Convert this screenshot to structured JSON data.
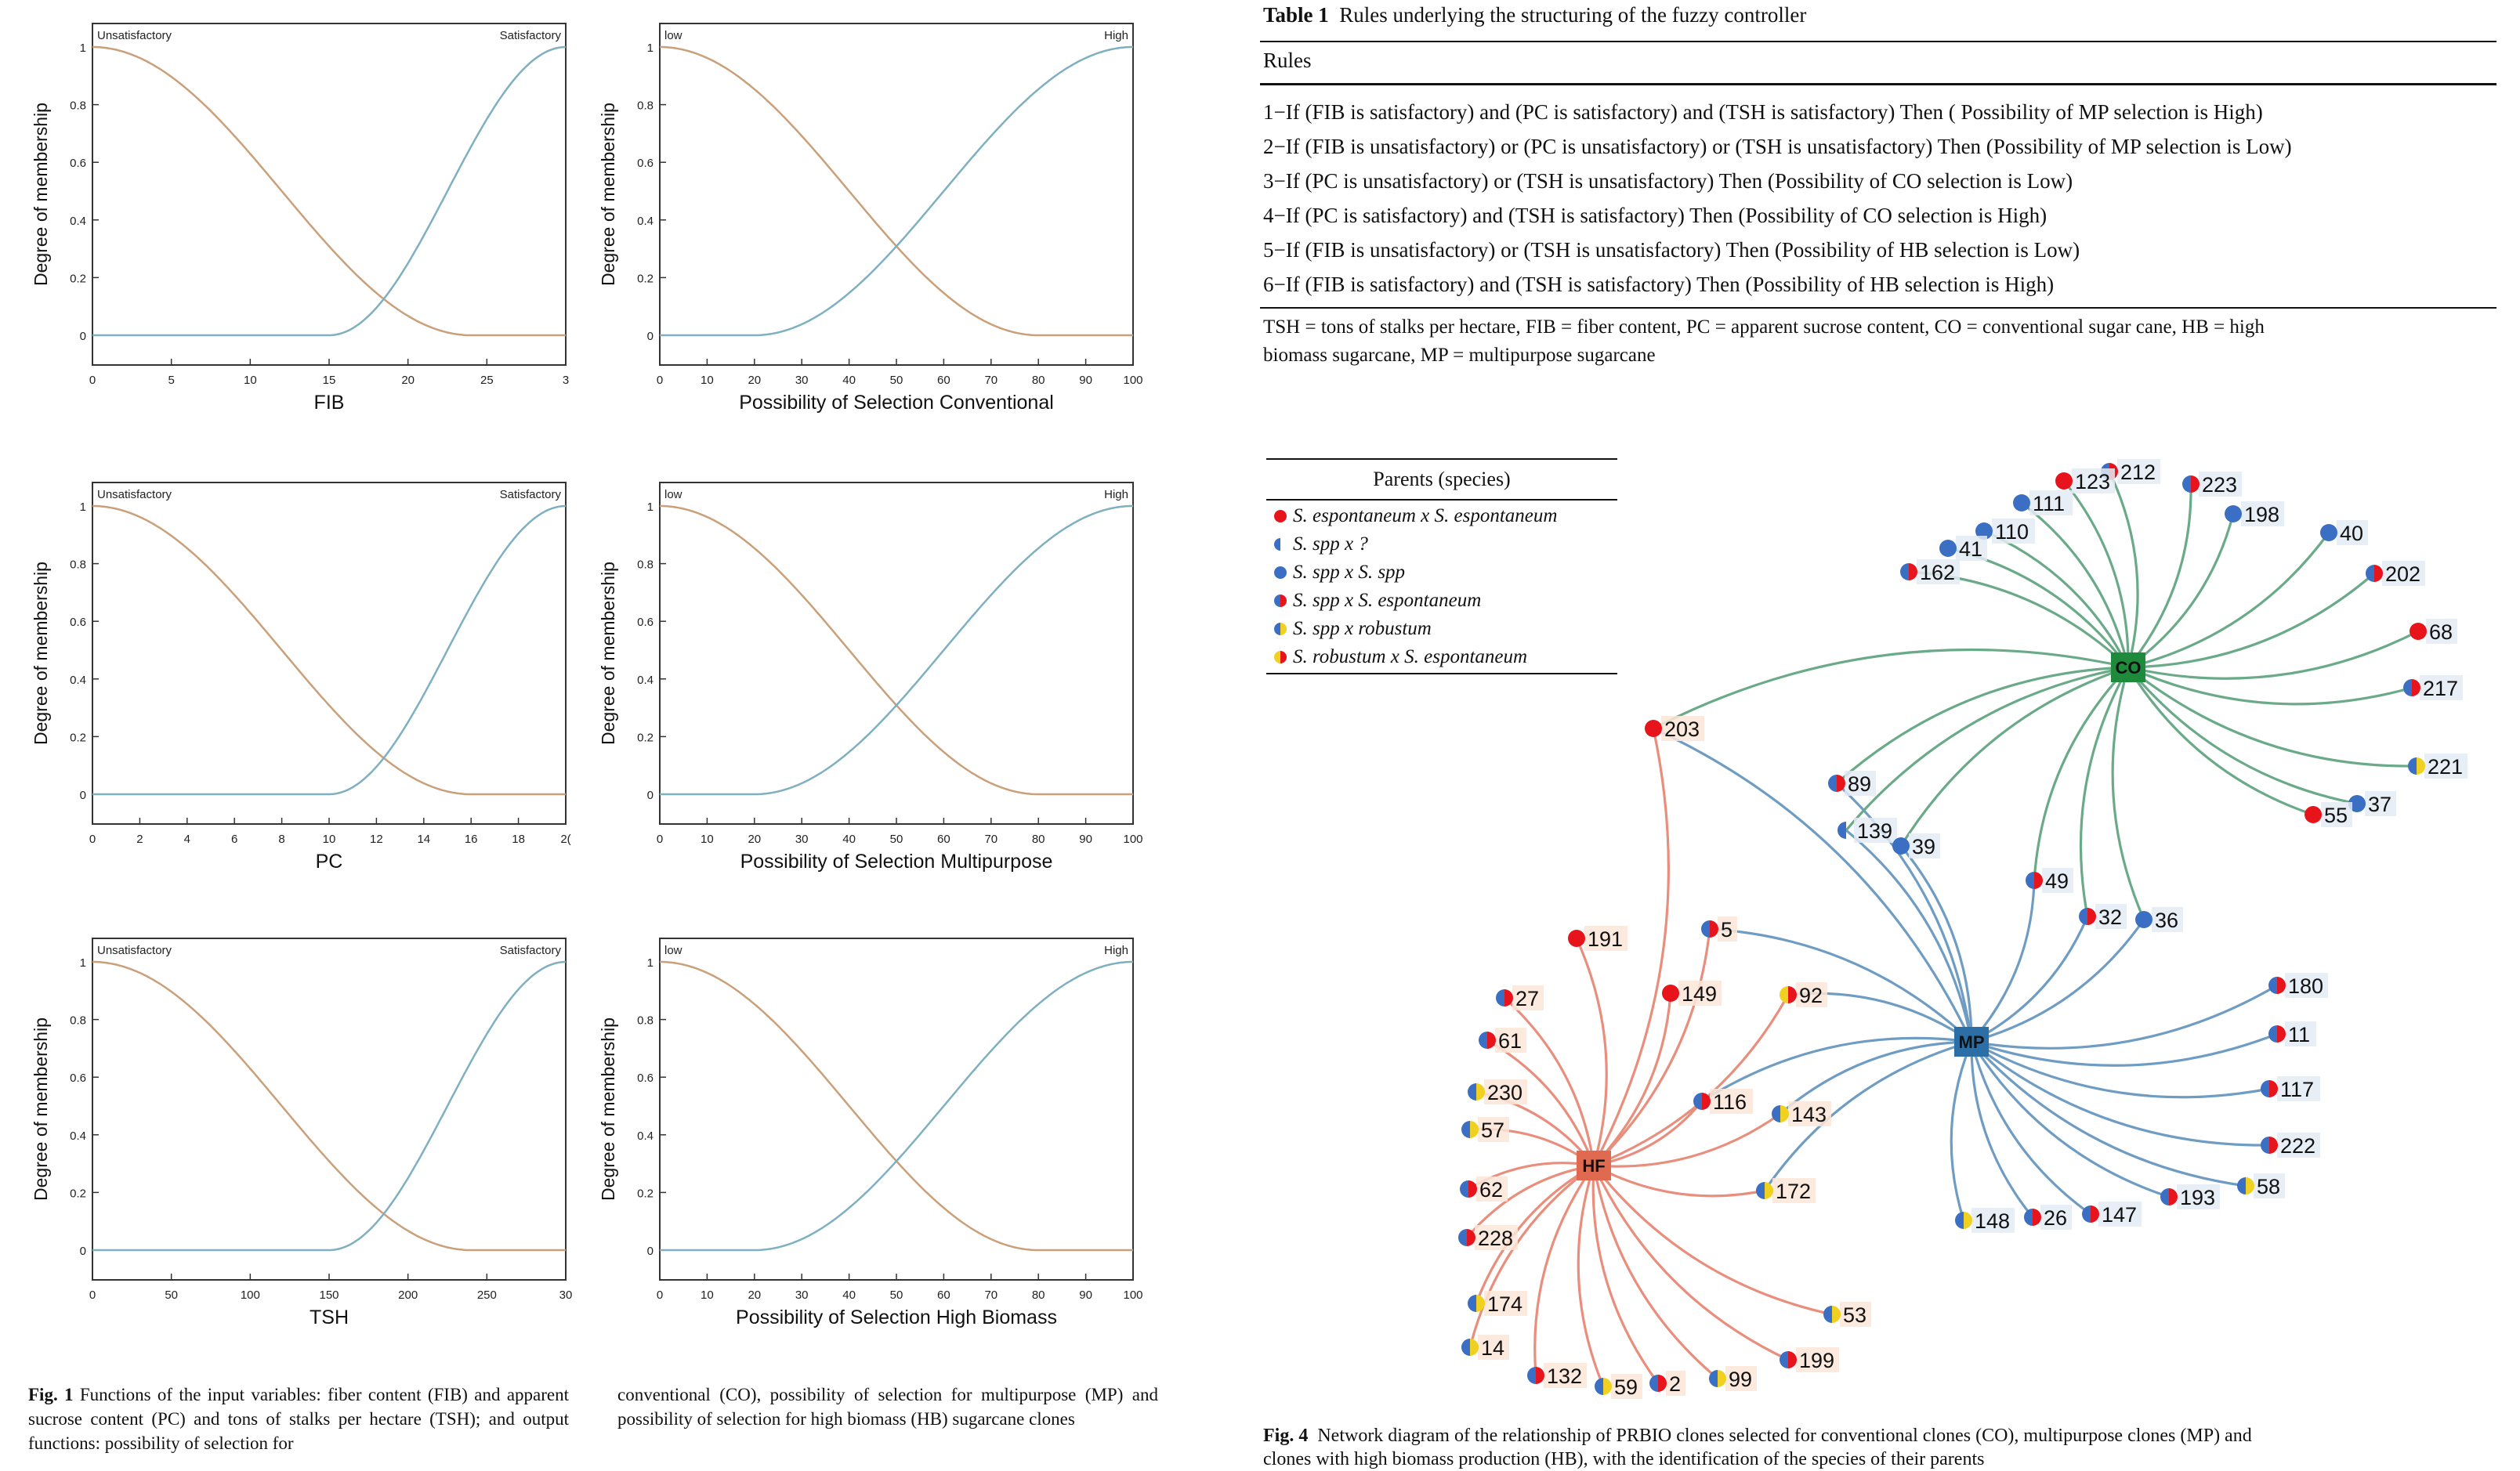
{
  "fig1": {
    "panels": [
      {
        "id": "fib",
        "ylabel": "Degree of membership",
        "xlabel": "FIB",
        "left_label": "Unsatisfactory",
        "right_label": "Satisfactory",
        "yticks": [
          "0",
          "0.2",
          "0.4",
          "0.6",
          "0.8",
          "1"
        ],
        "xticks": [
          "0",
          "5",
          "10",
          "15",
          "20",
          "25",
          "3"
        ]
      },
      {
        "id": "conv",
        "ylabel": "Degree of membership",
        "xlabel": "Possibility  of Selection  Conventional",
        "left_label": "low",
        "right_label": "High",
        "yticks": [
          "0",
          "0.2",
          "0.4",
          "0.6",
          "0.8",
          "1"
        ],
        "xticks": [
          "0",
          "10",
          "20",
          "30",
          "40",
          "50",
          "60",
          "70",
          "80",
          "90",
          "100"
        ]
      },
      {
        "id": "pc",
        "ylabel": "Degree of membership",
        "xlabel": "PC",
        "left_label": "Unsatisfactory",
        "right_label": "Satisfactory",
        "yticks": [
          "0",
          "0.2",
          "0.4",
          "0.6",
          "0.8",
          "1"
        ],
        "xticks": [
          "0",
          "2",
          "4",
          "6",
          "8",
          "10",
          "12",
          "14",
          "16",
          "18",
          "2("
        ]
      },
      {
        "id": "multi",
        "ylabel": "Degree of membership",
        "xlabel": "Possibility  of Selection  Multipurpose",
        "left_label": "low",
        "right_label": "High",
        "yticks": [
          "0",
          "0.2",
          "0.4",
          "0.6",
          "0.8",
          "1"
        ],
        "xticks": [
          "0",
          "10",
          "20",
          "30",
          "40",
          "50",
          "60",
          "70",
          "80",
          "90",
          "100"
        ]
      },
      {
        "id": "tsh",
        "ylabel": "Degree of membership",
        "xlabel": "TSH",
        "left_label": "Unsatisfactory",
        "right_label": "Satisfactory",
        "yticks": [
          "0",
          "0.2",
          "0.4",
          "0.6",
          "0.8",
          "1"
        ],
        "xticks": [
          "0",
          "50",
          "100",
          "150",
          "200",
          "250",
          "30"
        ]
      },
      {
        "id": "hb",
        "ylabel": "Degree of membership",
        "xlabel": "Possibility  of Selection  High Biomass",
        "left_label": "low",
        "right_label": "High",
        "yticks": [
          "0",
          "0.2",
          "0.4",
          "0.6",
          "0.8",
          "1"
        ],
        "xticks": [
          "0",
          "10",
          "20",
          "30",
          "40",
          "50",
          "60",
          "70",
          "80",
          "90",
          "100"
        ]
      }
    ],
    "caption_bold": "Fig. 1",
    "caption_col1": "Functions of the input variables: fiber content (FIB) and apparent sucrose content (PC) and tons of stalks per hectare (TSH); and output functions: possibility of selection for",
    "caption_col2": "conventional (CO), possibility of selection for multipurpose (MP) and possibility of selection for high biomass (HB) sugarcane clones",
    "colors": {
      "decreasing": "#c9a07a",
      "increasing": "#7eb0c0"
    }
  },
  "table1": {
    "title_bold": "Table 1",
    "title": "Rules underlying the structuring of the fuzzy controller",
    "header": "Rules",
    "rows": [
      "1−If (FIB is satisfactory) and (PC is satisfactory) and (TSH is satisfactory) Then ( Possibility of MP selection is High)",
      "2−If (FIB is unsatisfactory) or (PC is unsatisfactory) or (TSH is unsatisfactory) Then (Possibility of MP selection is Low)",
      "3−If (PC is unsatisfactory) or (TSH is unsatisfactory) Then (Possibility of CO selection is Low)",
      "4−If (PC is satisfactory) and (TSH is satisfactory) Then (Possibility of CO selection is High)",
      "5−If (FIB is unsatisfactory) or (TSH is unsatisfactory) Then (Possibility of HB selection is Low)",
      "6−If (FIB is satisfactory) and (TSH is satisfactory) Then (Possibility of HB selection is High)"
    ],
    "note_line1": "TSH = tons of stalks per hectare, FIB = fiber content, PC = apparent sucrose content, CO = conventional sugar cane, HB = high",
    "note_line2": "biomass sugarcane, MP = multipurpose sugarcane"
  },
  "network": {
    "legend_title": "Parents (species)",
    "legend": [
      {
        "label": "S. espontaneum x S. espontaneum",
        "type": "red"
      },
      {
        "label": "S. spp x ?",
        "type": "half-blue"
      },
      {
        "label": "S. spp x S. spp",
        "type": "blue"
      },
      {
        "label": "S. spp x S. espontaneum",
        "type": "blue-red"
      },
      {
        "label": "S. spp x robustum",
        "type": "blue-yellow"
      },
      {
        "label": "S. robustum x S. espontaneum",
        "type": "yellow-red"
      }
    ],
    "hubs": [
      {
        "id": "CO",
        "label": "CO",
        "color": "#1e8a3c"
      },
      {
        "id": "MP",
        "label": "MP",
        "color": "#2c6fa6"
      },
      {
        "id": "HF",
        "label": "HF",
        "color": "#e06a50"
      }
    ],
    "edge_colors": {
      "CO": "#6aaa88",
      "MP": "#6f9cc2",
      "HF": "#e98e7c"
    },
    "node_colors": {
      "red": "#e8141c",
      "blue": "#3a6fc4",
      "yellow": "#f0d020"
    },
    "nodes": [
      {
        "label": "212",
        "type": "blue-red",
        "hubs": [
          "CO"
        ]
      },
      {
        "label": "123",
        "type": "red",
        "hubs": [
          "CO"
        ]
      },
      {
        "label": "223",
        "type": "blue-red",
        "hubs": [
          "CO"
        ]
      },
      {
        "label": "111",
        "type": "blue",
        "hubs": [
          "CO"
        ]
      },
      {
        "label": "198",
        "type": "blue",
        "hubs": [
          "CO"
        ]
      },
      {
        "label": "110",
        "type": "blue",
        "hubs": [
          "CO"
        ]
      },
      {
        "label": "41",
        "type": "blue",
        "hubs": [
          "CO"
        ]
      },
      {
        "label": "40",
        "type": "blue",
        "hubs": [
          "CO"
        ]
      },
      {
        "label": "162",
        "type": "blue-red",
        "hubs": [
          "CO"
        ]
      },
      {
        "label": "202",
        "type": "blue-red",
        "hubs": [
          "CO"
        ]
      },
      {
        "label": "68",
        "type": "red",
        "hubs": [
          "CO"
        ]
      },
      {
        "label": "217",
        "type": "blue-red",
        "hubs": [
          "CO"
        ]
      },
      {
        "label": "221",
        "type": "blue-yellow",
        "hubs": [
          "CO"
        ]
      },
      {
        "label": "37",
        "type": "blue",
        "hubs": [
          "CO"
        ]
      },
      {
        "label": "55",
        "type": "red",
        "hubs": [
          "CO"
        ]
      },
      {
        "label": "203",
        "type": "red",
        "hubs": [
          "CO",
          "MP",
          "HF"
        ]
      },
      {
        "label": "89",
        "type": "blue-red",
        "hubs": [
          "CO",
          "MP"
        ]
      },
      {
        "label": "139",
        "type": "half-blue",
        "hubs": [
          "CO",
          "MP"
        ]
      },
      {
        "label": "39",
        "type": "blue",
        "hubs": [
          "CO",
          "MP"
        ]
      },
      {
        "label": "49",
        "type": "blue-red",
        "hubs": [
          "CO",
          "MP"
        ]
      },
      {
        "label": "32",
        "type": "blue-red",
        "hubs": [
          "CO",
          "MP"
        ]
      },
      {
        "label": "36",
        "type": "blue",
        "hubs": [
          "CO",
          "MP"
        ]
      },
      {
        "label": "180",
        "type": "blue-red",
        "hubs": [
          "MP"
        ]
      },
      {
        "label": "11",
        "type": "blue-red",
        "hubs": [
          "MP"
        ]
      },
      {
        "label": "117",
        "type": "blue-red",
        "hubs": [
          "MP"
        ]
      },
      {
        "label": "222",
        "type": "blue-red",
        "hubs": [
          "MP"
        ]
      },
      {
        "label": "58",
        "type": "blue-yellow",
        "hubs": [
          "MP"
        ]
      },
      {
        "label": "193",
        "type": "blue-red",
        "hubs": [
          "MP"
        ]
      },
      {
        "label": "147",
        "type": "blue-red",
        "hubs": [
          "MP"
        ]
      },
      {
        "label": "26",
        "type": "blue-red",
        "hubs": [
          "MP"
        ]
      },
      {
        "label": "148",
        "type": "blue-yellow",
        "hubs": [
          "MP"
        ]
      },
      {
        "label": "5",
        "type": "blue-red",
        "hubs": [
          "MP",
          "HF"
        ]
      },
      {
        "label": "92",
        "type": "yellow-red",
        "hubs": [
          "MP",
          "HF"
        ]
      },
      {
        "label": "116",
        "type": "blue-red",
        "hubs": [
          "MP",
          "HF"
        ]
      },
      {
        "label": "143",
        "type": "blue-yellow",
        "hubs": [
          "MP",
          "HF"
        ]
      },
      {
        "label": "172",
        "type": "blue-yellow",
        "hubs": [
          "MP",
          "HF"
        ]
      },
      {
        "label": "191",
        "type": "red",
        "hubs": [
          "HF"
        ]
      },
      {
        "label": "149",
        "type": "red",
        "hubs": [
          "HF"
        ]
      },
      {
        "label": "27",
        "type": "blue-red",
        "hubs": [
          "HF"
        ]
      },
      {
        "label": "61",
        "type": "blue-red",
        "hubs": [
          "HF"
        ]
      },
      {
        "label": "230",
        "type": "blue-yellow",
        "hubs": [
          "HF"
        ]
      },
      {
        "label": "57",
        "type": "blue-yellow",
        "hubs": [
          "HF"
        ]
      },
      {
        "label": "62",
        "type": "blue-red",
        "hubs": [
          "HF"
        ]
      },
      {
        "label": "228",
        "type": "blue-red",
        "hubs": [
          "HF"
        ]
      },
      {
        "label": "174",
        "type": "blue-yellow",
        "hubs": [
          "HF"
        ]
      },
      {
        "label": "14",
        "type": "blue-yellow",
        "hubs": [
          "HF"
        ]
      },
      {
        "label": "132",
        "type": "blue-red",
        "hubs": [
          "HF"
        ]
      },
      {
        "label": "59",
        "type": "blue-yellow",
        "hubs": [
          "HF"
        ]
      },
      {
        "label": "2",
        "type": "blue-red",
        "hubs": [
          "HF"
        ]
      },
      {
        "label": "99",
        "type": "blue-yellow",
        "hubs": [
          "HF"
        ]
      },
      {
        "label": "199",
        "type": "blue-red",
        "hubs": [
          "HF"
        ]
      },
      {
        "label": "53",
        "type": "blue-yellow",
        "hubs": [
          "HF"
        ]
      }
    ],
    "caption_bold": "Fig. 4",
    "caption_line1": "Network diagram of the relationship of PRBIO clones selected for conventional clones (CO), multipurpose clones (MP) and",
    "caption_line2": "clones with high biomass production (HB), with the identification of the species of their parents"
  }
}
